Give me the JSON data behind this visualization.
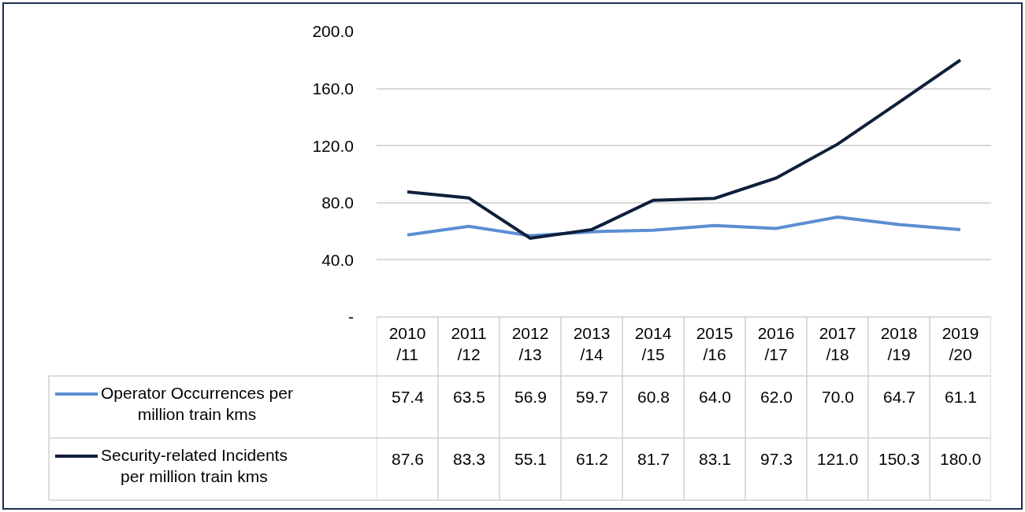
{
  "chart_data": {
    "type": "line",
    "categories": [
      "2010/11",
      "2011/12",
      "2012/13",
      "2013/14",
      "2014/15",
      "2015/16",
      "2016/17",
      "2017/18",
      "2018/19",
      "2019/20"
    ],
    "series": [
      {
        "name": "Operator Occurrences per million train kms",
        "color": "#5b8ed3",
        "values": [
          57.4,
          63.5,
          56.9,
          59.7,
          60.8,
          64.0,
          62.0,
          70.0,
          64.7,
          61.1
        ],
        "value_labels": [
          "57.4",
          "63.5",
          "56.9",
          "59.7",
          "60.8",
          "64.0",
          "62.0",
          "70.0",
          "64.7",
          "61.1"
        ]
      },
      {
        "name": "Security-related Incidents per million train kms",
        "color": "#0f1f3a",
        "values": [
          87.6,
          83.3,
          55.1,
          61.2,
          81.7,
          83.1,
          97.3,
          121.0,
          150.3,
          180.0
        ],
        "value_labels": [
          "87.6",
          "83.3",
          "55.1",
          "61.2",
          "81.7",
          "83.1",
          "97.3",
          "121.0",
          "150.3",
          "180.0"
        ]
      }
    ],
    "ylim": [
      0,
      200
    ],
    "yticks": [
      {
        "value": 0,
        "label": "-"
      },
      {
        "value": 40,
        "label": "40.0"
      },
      {
        "value": 80,
        "label": "80.0"
      },
      {
        "value": 120,
        "label": "120.0"
      },
      {
        "value": 160,
        "label": "160.0"
      },
      {
        "value": 200,
        "label": "200.0"
      }
    ],
    "grid": "y",
    "legend": "bottom left",
    "marker": "none",
    "line_style": "solid"
  }
}
